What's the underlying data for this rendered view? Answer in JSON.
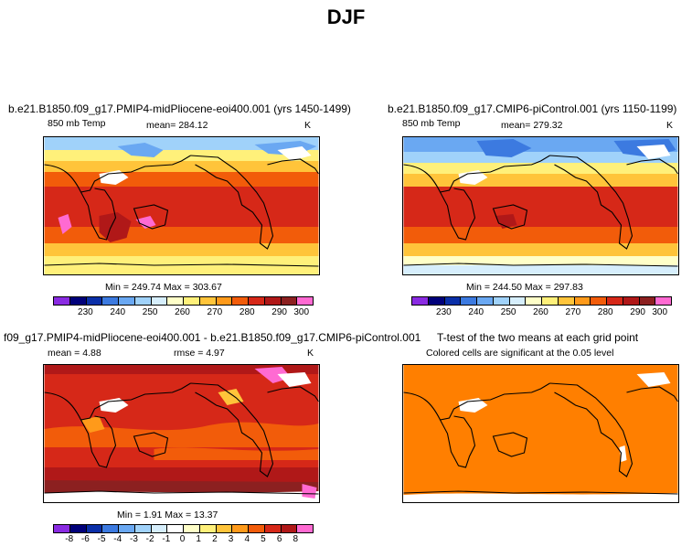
{
  "main_title": "DJF",
  "panels": [
    {
      "title": "b.e21.B1850.f09_g17.PMIP4-midPliocene-eoi400.001 (yrs 1450-1499)",
      "left_label": "850 mb Temp",
      "center_label": "mean= 284.12",
      "right_label": "K",
      "stats": "Min = 249.74  Max = 303.67",
      "colorbar_ticks": [
        "230",
        "240",
        "250",
        "260",
        "270",
        "280",
        "290",
        "300"
      ]
    },
    {
      "title": "b.e21.B1850.f09_g17.CMIP6-piControl.001 (yrs 1150-1199)",
      "left_label": "850 mb Temp",
      "center_label": "mean= 279.32",
      "right_label": "K",
      "stats": "Min = 244.50  Max = 297.83",
      "colorbar_ticks": [
        "230",
        "240",
        "250",
        "260",
        "270",
        "280",
        "290",
        "300"
      ]
    },
    {
      "title": "f09_g17.PMIP4-midPliocene-eoi400.001 - b.e21.B1850.f09_g17.CMIP6-piControl.001",
      "left_label": "mean =    4.88",
      "center_label": "rmse =    4.97",
      "right_label": "K",
      "stats": "Min =    1.91  Max =   13.37",
      "colorbar_ticks": [
        "-8",
        "-6",
        "-5",
        "-4",
        "-3",
        "-2",
        "-1",
        "0",
        "1",
        "2",
        "3",
        "4",
        "5",
        "6",
        "8"
      ]
    },
    {
      "title": "T-test of the two means at each grid point",
      "subtitle": "Colored cells are significant at the 0.05 level"
    }
  ],
  "colors": {
    "temp_scale": [
      "#8a2be2",
      "#00007a",
      "#0a2fa8",
      "#3c7ae0",
      "#6aa8f2",
      "#a0d2fa",
      "#d6eefc",
      "#ffffc8",
      "#fff07a",
      "#ffc43a",
      "#ff9a1a",
      "#f25c0a",
      "#d62818",
      "#b01818",
      "#8c2020",
      "#ff6ad2"
    ],
    "diff_scale": [
      "#8a2be2",
      "#00007a",
      "#0a2fa8",
      "#3c7ae0",
      "#6aa8f2",
      "#a0d2fa",
      "#d6eefc",
      "#ffffff",
      "#ffffc8",
      "#fff07a",
      "#ffc43a",
      "#ff9a1a",
      "#f25c0a",
      "#d62818",
      "#b01818",
      "#ff6ad2"
    ],
    "ttest_fill": "#ff7f00"
  }
}
